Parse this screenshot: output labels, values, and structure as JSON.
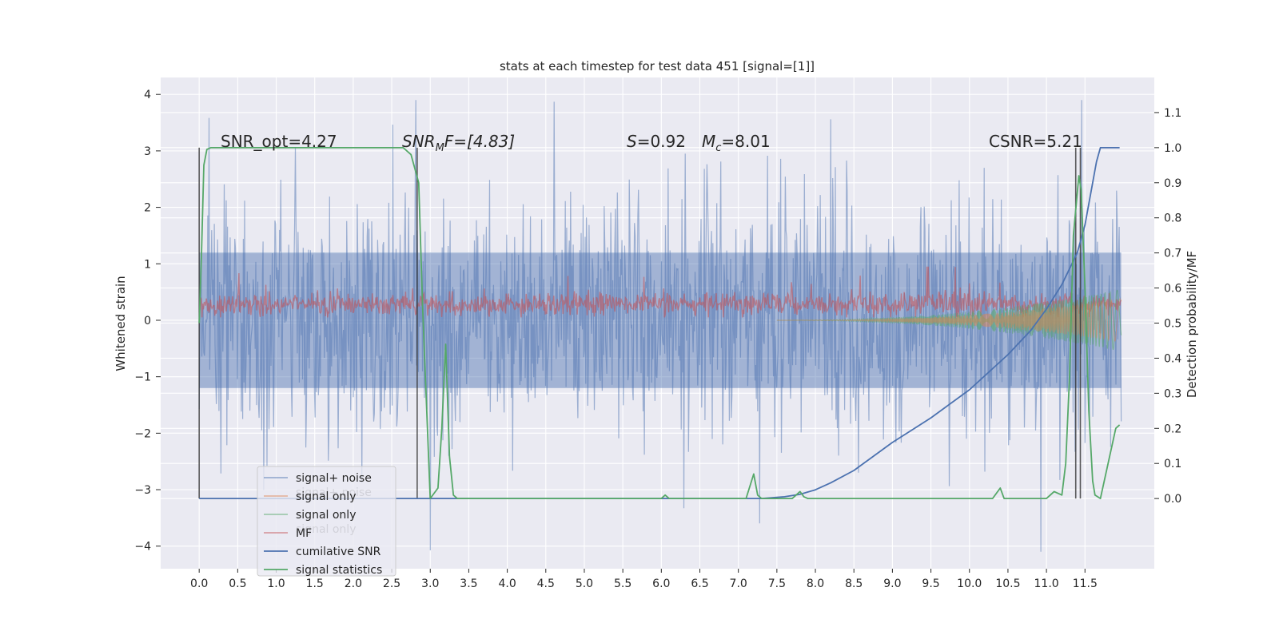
{
  "chart_data": {
    "type": "line",
    "title": "stats at each timestep for test data 451 [signal=[1]]",
    "ylabel_left": "Whitened strain",
    "ylabel_right": "Detection probability/MF",
    "xlim": [
      -0.5,
      12.4
    ],
    "ylim_left": [
      -4.4,
      4.3
    ],
    "ylim_right": [
      -0.2,
      1.2
    ],
    "x_ticks": [
      "0.0",
      "0.5",
      "1.0",
      "1.5",
      "2.0",
      "2.5",
      "3.0",
      "3.5",
      "4.0",
      "4.5",
      "5.0",
      "5.5",
      "6.0",
      "6.5",
      "7.0",
      "7.5",
      "8.0",
      "8.5",
      "9.0",
      "9.5",
      "10.0",
      "10.5",
      "11.0",
      "11.5"
    ],
    "y_left_ticks": [
      "−4",
      "−3",
      "−2",
      "−1",
      "0",
      "1",
      "2",
      "3",
      "4"
    ],
    "y_right_ticks": [
      "0.0",
      "0.1",
      "0.2",
      "0.3",
      "0.4",
      "0.5",
      "0.6",
      "0.7",
      "0.8",
      "0.9",
      "1.0",
      "1.1"
    ],
    "grid": true,
    "legend_position": "lower-left",
    "annotations": {
      "snr_opt": "SNR_opt=4.27",
      "snr_mf_main": "SNR",
      "snr_mf_sub": "M",
      "snr_mf_rest": "F=[4.83]",
      "s_italic": "S",
      "s_value": "=0.92",
      "mc_italic": "M",
      "mc_sub": "c",
      "mc_value": "=8.01",
      "csnr": "CSNR=5.21"
    },
    "legend": [
      {
        "label": "signal+ noise",
        "color": "#4c72b0",
        "alpha": 0.5
      },
      {
        "label": "signal only",
        "color": "#dd8452",
        "alpha": 0.5
      },
      {
        "label": "signal only",
        "color": "#55a868",
        "alpha": 0.5
      },
      {
        "label": "MF",
        "color": "#c44e52",
        "alpha": 0.5
      },
      {
        "label": "cumilative SNR",
        "color": "#4c72b0",
        "alpha": 1.0
      },
      {
        "label": "signal statistics",
        "color": "#55a868",
        "alpha": 1.0
      }
    ],
    "legend_ghost_labels": [
      "signal+ noise",
      "signal only"
    ],
    "vlines_x": [
      0.0,
      2.83,
      11.38,
      11.44
    ],
    "series": [
      {
        "name": "cumilative SNR",
        "axis": "right",
        "x": [
          0.0,
          7.3,
          7.6,
          7.8,
          8.0,
          8.2,
          8.5,
          9.0,
          9.5,
          10.0,
          10.5,
          10.8,
          11.0,
          11.2,
          11.4,
          11.5,
          11.6,
          11.65,
          11.7,
          11.95
        ],
        "y": [
          0.0,
          0.0,
          0.005,
          0.012,
          0.025,
          0.045,
          0.08,
          0.16,
          0.23,
          0.31,
          0.41,
          0.48,
          0.54,
          0.61,
          0.7,
          0.78,
          0.9,
          0.96,
          1.0,
          1.0
        ]
      },
      {
        "name": "signal statistics",
        "axis": "right",
        "x": [
          0.0,
          0.03,
          0.06,
          0.1,
          0.15,
          0.5,
          1.0,
          2.0,
          2.65,
          2.75,
          2.85,
          2.9,
          3.0,
          3.1,
          3.15,
          3.2,
          3.25,
          3.3,
          3.35,
          3.5,
          6.0,
          6.05,
          6.1,
          7.1,
          7.2,
          7.25,
          7.3,
          7.7,
          7.8,
          7.85,
          7.9,
          10.3,
          10.4,
          10.45,
          10.55,
          11.0,
          11.1,
          11.2,
          11.25,
          11.3,
          11.35,
          11.42,
          11.45,
          11.5,
          11.55,
          11.6,
          11.63,
          11.7,
          11.9,
          11.95
        ],
        "y": [
          0.5,
          0.7,
          0.95,
          0.995,
          1.0,
          1.0,
          1.0,
          1.0,
          1.0,
          0.98,
          0.9,
          0.55,
          0.0,
          0.03,
          0.2,
          0.44,
          0.12,
          0.01,
          0.0,
          0.0,
          0.0,
          0.01,
          0.0,
          0.0,
          0.07,
          0.01,
          0.0,
          0.0,
          0.02,
          0.005,
          0.0,
          0.0,
          0.03,
          0.0,
          0.0,
          0.0,
          0.02,
          0.01,
          0.1,
          0.35,
          0.75,
          0.92,
          0.88,
          0.6,
          0.25,
          0.05,
          0.01,
          0.0,
          0.2,
          0.21
        ]
      },
      {
        "name": "signal+ noise",
        "axis": "left",
        "type": "noise-band",
        "x_range": [
          0.0,
          11.97
        ],
        "y_mean": 0.0,
        "y_std": 1.05,
        "y_extent": [
          -4.1,
          3.9
        ]
      },
      {
        "name": "MF",
        "axis": "left",
        "type": "noise-band",
        "x_range": [
          0.0,
          11.97
        ],
        "y_mean": 0.28,
        "y_std": 0.1,
        "y_extent": [
          0.05,
          0.95
        ]
      },
      {
        "name": "signal only",
        "axis": "left",
        "type": "chirp",
        "x_range": [
          7.5,
          11.97
        ],
        "amplitude_at_end": 0.55
      }
    ]
  }
}
